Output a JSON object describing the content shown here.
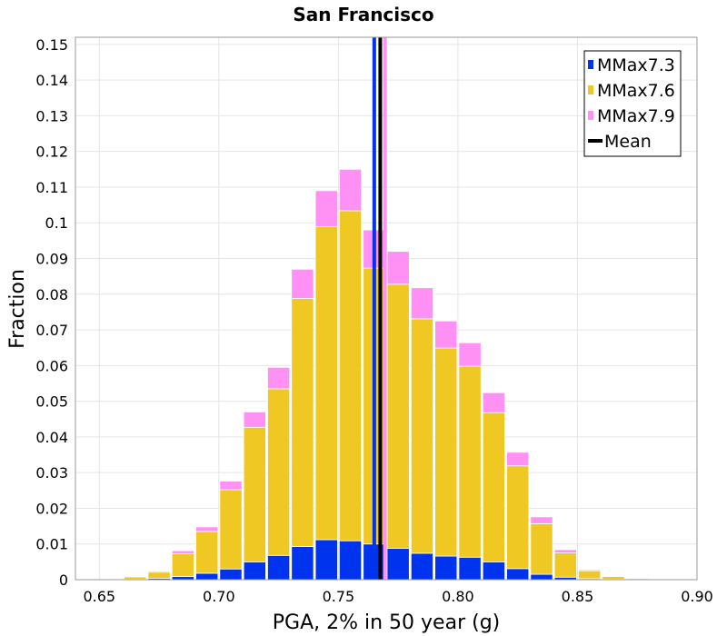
{
  "chart_data": {
    "type": "bar",
    "stacked": true,
    "title": "San Francisco",
    "xlabel": "PGA, 2% in 50 year (g)",
    "ylabel": "Fraction",
    "xlim": [
      0.64,
      0.9
    ],
    "ylim": [
      0,
      0.152
    ],
    "x_ticks": [
      "0.65",
      "0.70",
      "0.75",
      "0.80",
      "0.85",
      "0.90"
    ],
    "y_ticks": [
      "0",
      "0.01",
      "0.02",
      "0.03",
      "0.04",
      "0.05",
      "0.06",
      "0.07",
      "0.08",
      "0.09",
      "0.1",
      "0.11",
      "0.12",
      "0.13",
      "0.14",
      "0.15"
    ],
    "bin_width": 0.01,
    "x": [
      0.655,
      0.665,
      0.675,
      0.685,
      0.695,
      0.705,
      0.715,
      0.725,
      0.735,
      0.745,
      0.755,
      0.765,
      0.775,
      0.785,
      0.795,
      0.805,
      0.815,
      0.825,
      0.835,
      0.845,
      0.855,
      0.865,
      0.875,
      0.885,
      0.895
    ],
    "series": [
      {
        "name": "MMax7.3",
        "color": "#0033ee",
        "values": [
          0.0,
          0.0001,
          0.0004,
          0.0009,
          0.0018,
          0.003,
          0.005,
          0.0068,
          0.0093,
          0.0112,
          0.0109,
          0.01,
          0.0088,
          0.0074,
          0.0066,
          0.0063,
          0.005,
          0.0031,
          0.0015,
          0.0007,
          0.0003,
          0.0001,
          0.0,
          0.0,
          0.0
        ]
      },
      {
        "name": "MMax7.6",
        "color": "#f0c823",
        "values": [
          0.0002,
          0.0007,
          0.0017,
          0.0064,
          0.0117,
          0.0222,
          0.0377,
          0.0467,
          0.0695,
          0.0877,
          0.0925,
          0.0773,
          0.074,
          0.0657,
          0.0583,
          0.0535,
          0.0418,
          0.0288,
          0.0142,
          0.0068,
          0.0022,
          0.0008,
          0.0003,
          0.0001,
          0.0
        ]
      },
      {
        "name": "MMax7.9",
        "color": "#ff90f4",
        "values": [
          0.0,
          0.0001,
          0.0003,
          0.0008,
          0.0013,
          0.0024,
          0.0043,
          0.006,
          0.0082,
          0.0101,
          0.0116,
          0.0107,
          0.0092,
          0.0087,
          0.0076,
          0.0066,
          0.0056,
          0.0038,
          0.0019,
          0.0009,
          0.0003,
          0.0001,
          0.0,
          0.0,
          0.0
        ]
      }
    ],
    "mean_lines": [
      {
        "name": "MMax7.3",
        "x": 0.765,
        "color": "#0033ee"
      },
      {
        "name": "MMax7.9",
        "x": 0.7695,
        "color": "#ff90f4"
      },
      {
        "name": "Mean",
        "x": 0.7675,
        "color": "#000000"
      }
    ],
    "legend": {
      "position": "top-right",
      "entries": [
        {
          "label": "MMax7.3",
          "color": "#0033ee",
          "kind": "box"
        },
        {
          "label": "MMax7.6",
          "color": "#f0c823",
          "kind": "box"
        },
        {
          "label": "MMax7.9",
          "color": "#ff90f4",
          "kind": "box"
        },
        {
          "label": "Mean",
          "color": "#000000",
          "kind": "line"
        }
      ]
    },
    "grid": true
  }
}
